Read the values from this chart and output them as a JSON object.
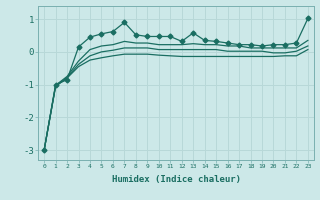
{
  "xlabel": "Humidex (Indice chaleur)",
  "bg_color": "#cce8e8",
  "grid_color": "#b8d8d8",
  "line_color": "#1a6e62",
  "xlim": [
    -0.5,
    23.5
  ],
  "ylim": [
    -3.3,
    1.4
  ],
  "x": [
    0,
    1,
    2,
    3,
    4,
    5,
    6,
    7,
    8,
    9,
    10,
    11,
    12,
    13,
    14,
    15,
    16,
    17,
    18,
    19,
    20,
    21,
    22,
    23
  ],
  "line1_marked": [
    -3.0,
    -1.0,
    -0.85,
    0.15,
    0.45,
    0.55,
    0.62,
    0.9,
    0.52,
    0.47,
    0.47,
    0.47,
    0.32,
    0.58,
    0.35,
    0.32,
    0.27,
    0.22,
    0.22,
    0.18,
    0.22,
    0.22,
    0.27,
    1.02
  ],
  "line2": [
    -3.0,
    -1.02,
    -0.75,
    -0.28,
    0.07,
    0.18,
    0.22,
    0.32,
    0.27,
    0.27,
    0.22,
    0.22,
    0.22,
    0.25,
    0.22,
    0.22,
    0.18,
    0.18,
    0.12,
    0.12,
    0.12,
    0.12,
    0.12,
    0.35
  ],
  "line3": [
    -3.0,
    -1.05,
    -0.78,
    -0.38,
    -0.12,
    0.0,
    0.05,
    0.12,
    0.12,
    0.12,
    0.07,
    0.07,
    0.07,
    0.07,
    0.07,
    0.07,
    0.02,
    0.02,
    0.02,
    0.02,
    -0.03,
    -0.03,
    0.02,
    0.18
  ],
  "line4": [
    -3.0,
    -1.05,
    -0.8,
    -0.45,
    -0.25,
    -0.18,
    -0.12,
    -0.07,
    -0.07,
    -0.07,
    -0.1,
    -0.12,
    -0.14,
    -0.14,
    -0.14,
    -0.14,
    -0.14,
    -0.14,
    -0.14,
    -0.14,
    -0.14,
    -0.12,
    -0.12,
    0.07
  ],
  "yticks": [
    -3,
    -2,
    -1,
    0,
    1
  ],
  "xtick_labels": [
    "0",
    "1",
    "2",
    "3",
    "4",
    "5",
    "6",
    "7",
    "8",
    "9",
    "10",
    "11",
    "12",
    "13",
    "14",
    "15",
    "16",
    "17",
    "18",
    "19",
    "20",
    "21",
    "22",
    "23"
  ]
}
